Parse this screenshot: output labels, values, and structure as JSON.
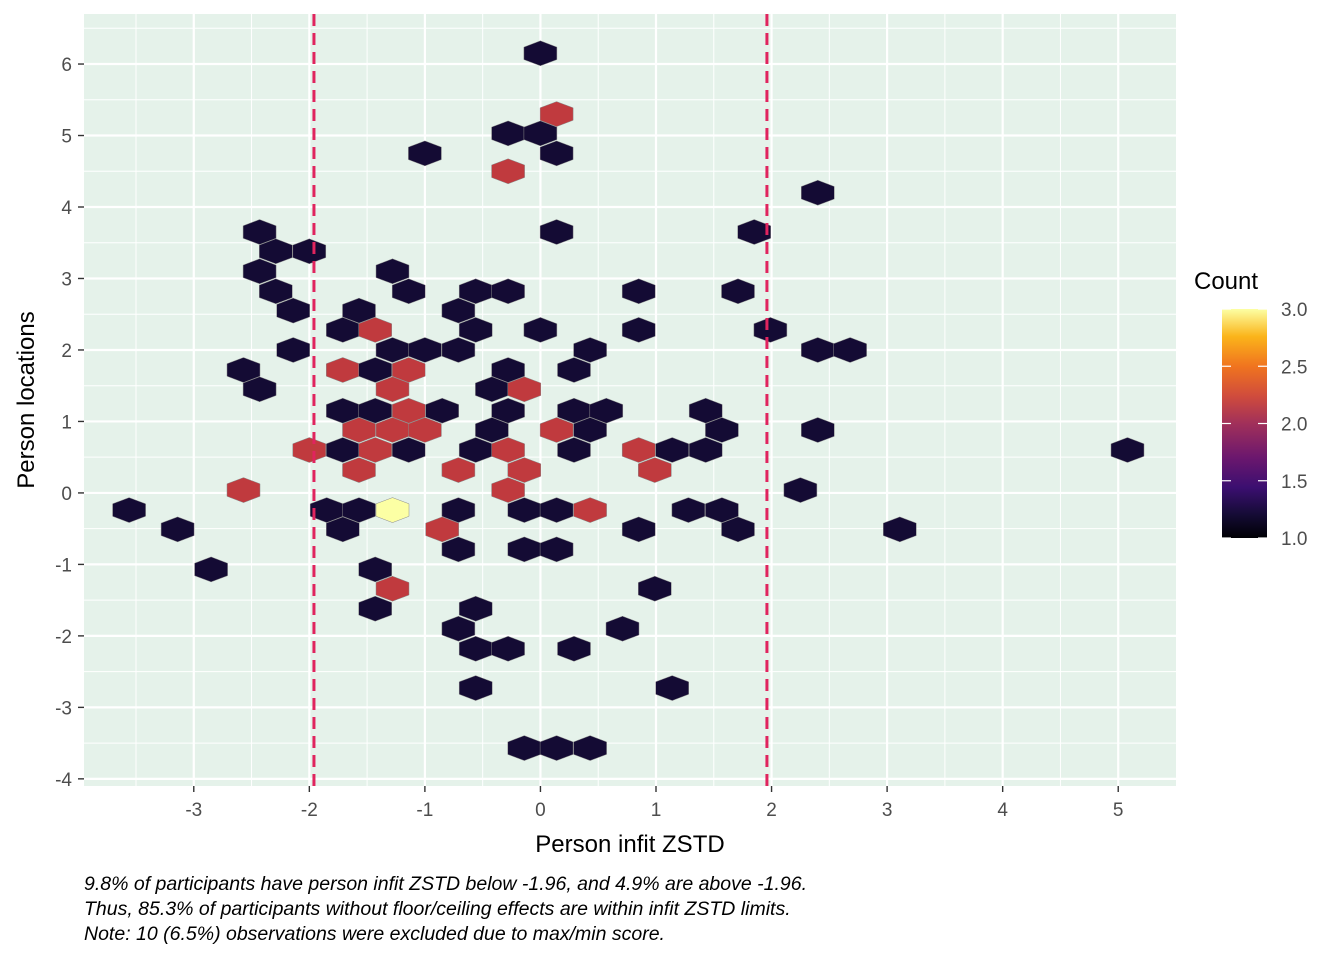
{
  "chart_data": {
    "type": "hexbin",
    "xlabel": "Person infit ZSTD",
    "ylabel": "Person locations",
    "xlim": [
      -3.95,
      5.5
    ],
    "ylim": [
      -4.1,
      6.7
    ],
    "x_ticks": [
      -3,
      -2,
      -1,
      0,
      1,
      2,
      3,
      4,
      5
    ],
    "x_tick_labels": [
      "-3",
      "-2",
      "-1",
      "0",
      "1",
      "2",
      "3",
      "4",
      "5"
    ],
    "y_ticks": [
      -4,
      -3,
      -2,
      -1,
      0,
      1,
      2,
      3,
      4,
      5,
      6
    ],
    "y_tick_labels": [
      "-4",
      "-3",
      "-2",
      "-1",
      "0",
      "1",
      "2",
      "3",
      "4",
      "5",
      "6"
    ],
    "reference_lines_x": [
      -1.96,
      1.96
    ],
    "reference_line_color": "#e0245e",
    "panel_background": "#e5f2ea",
    "grid": true,
    "legend": {
      "title": "Count",
      "position": "right",
      "min": 1.0,
      "max": 3.0,
      "ticks": [
        3.0,
        2.5,
        2.0,
        1.5,
        1.0
      ],
      "tick_labels": [
        "3.0",
        "2.5",
        "2.0",
        "1.5",
        "1.0"
      ],
      "colormap": "inferno"
    },
    "hex_color_low": "#140b34",
    "hex_color_mid": "#c03a3e",
    "hex_color_high": "#fcffa4",
    "hexagons": [
      {
        "x": 0.0,
        "y": 6.15,
        "count": 1
      },
      {
        "x": 0.14,
        "y": 5.3,
        "count": 2
      },
      {
        "x": -0.28,
        "y": 5.03,
        "count": 1
      },
      {
        "x": 0.0,
        "y": 5.03,
        "count": 1
      },
      {
        "x": -1.0,
        "y": 4.75,
        "count": 1
      },
      {
        "x": 0.14,
        "y": 4.75,
        "count": 1
      },
      {
        "x": -0.28,
        "y": 4.5,
        "count": 2
      },
      {
        "x": 2.4,
        "y": 4.2,
        "count": 1
      },
      {
        "x": -2.43,
        "y": 3.65,
        "count": 1
      },
      {
        "x": 0.14,
        "y": 3.65,
        "count": 1
      },
      {
        "x": 1.85,
        "y": 3.65,
        "count": 1
      },
      {
        "x": -2.29,
        "y": 3.38,
        "count": 1
      },
      {
        "x": -2.0,
        "y": 3.38,
        "count": 1
      },
      {
        "x": -2.43,
        "y": 3.1,
        "count": 1
      },
      {
        "x": -1.28,
        "y": 3.1,
        "count": 1
      },
      {
        "x": -2.29,
        "y": 2.82,
        "count": 1
      },
      {
        "x": -1.14,
        "y": 2.82,
        "count": 1
      },
      {
        "x": -0.56,
        "y": 2.82,
        "count": 1
      },
      {
        "x": -0.28,
        "y": 2.82,
        "count": 1
      },
      {
        "x": 0.85,
        "y": 2.82,
        "count": 1
      },
      {
        "x": 1.71,
        "y": 2.82,
        "count": 1
      },
      {
        "x": -2.14,
        "y": 2.55,
        "count": 1
      },
      {
        "x": -1.57,
        "y": 2.55,
        "count": 1
      },
      {
        "x": -0.71,
        "y": 2.55,
        "count": 1
      },
      {
        "x": -1.71,
        "y": 2.28,
        "count": 1
      },
      {
        "x": -1.43,
        "y": 2.28,
        "count": 2
      },
      {
        "x": -0.56,
        "y": 2.28,
        "count": 1
      },
      {
        "x": 0.0,
        "y": 2.28,
        "count": 1
      },
      {
        "x": 0.85,
        "y": 2.28,
        "count": 1
      },
      {
        "x": 1.99,
        "y": 2.28,
        "count": 1
      },
      {
        "x": -2.14,
        "y": 2.0,
        "count": 1
      },
      {
        "x": -1.28,
        "y": 2.0,
        "count": 1
      },
      {
        "x": -1.0,
        "y": 2.0,
        "count": 1
      },
      {
        "x": -0.71,
        "y": 2.0,
        "count": 1
      },
      {
        "x": 0.43,
        "y": 2.0,
        "count": 1
      },
      {
        "x": 2.4,
        "y": 2.0,
        "count": 1
      },
      {
        "x": 2.68,
        "y": 2.0,
        "count": 1
      },
      {
        "x": -2.57,
        "y": 1.72,
        "count": 1
      },
      {
        "x": -1.71,
        "y": 1.72,
        "count": 2
      },
      {
        "x": -1.43,
        "y": 1.72,
        "count": 1
      },
      {
        "x": -1.14,
        "y": 1.72,
        "count": 2
      },
      {
        "x": -0.28,
        "y": 1.72,
        "count": 1
      },
      {
        "x": 0.29,
        "y": 1.72,
        "count": 1
      },
      {
        "x": -2.43,
        "y": 1.45,
        "count": 1
      },
      {
        "x": -1.28,
        "y": 1.45,
        "count": 2
      },
      {
        "x": -0.42,
        "y": 1.45,
        "count": 1
      },
      {
        "x": -0.14,
        "y": 1.45,
        "count": 2
      },
      {
        "x": -1.71,
        "y": 1.15,
        "count": 1
      },
      {
        "x": -1.43,
        "y": 1.15,
        "count": 1
      },
      {
        "x": -1.14,
        "y": 1.15,
        "count": 2
      },
      {
        "x": -0.85,
        "y": 1.15,
        "count": 1
      },
      {
        "x": -0.28,
        "y": 1.15,
        "count": 1
      },
      {
        "x": 0.29,
        "y": 1.15,
        "count": 1
      },
      {
        "x": 0.57,
        "y": 1.15,
        "count": 1
      },
      {
        "x": 1.43,
        "y": 1.15,
        "count": 1
      },
      {
        "x": -1.57,
        "y": 0.88,
        "count": 2
      },
      {
        "x": -1.28,
        "y": 0.88,
        "count": 2
      },
      {
        "x": -1.0,
        "y": 0.88,
        "count": 2
      },
      {
        "x": -0.42,
        "y": 0.88,
        "count": 1
      },
      {
        "x": 0.14,
        "y": 0.88,
        "count": 2
      },
      {
        "x": 0.43,
        "y": 0.88,
        "count": 1
      },
      {
        "x": 1.57,
        "y": 0.88,
        "count": 1
      },
      {
        "x": 2.4,
        "y": 0.88,
        "count": 1
      },
      {
        "x": -2.0,
        "y": 0.6,
        "count": 2
      },
      {
        "x": -1.71,
        "y": 0.6,
        "count": 1
      },
      {
        "x": -1.43,
        "y": 0.6,
        "count": 2
      },
      {
        "x": -1.14,
        "y": 0.6,
        "count": 1
      },
      {
        "x": -0.56,
        "y": 0.6,
        "count": 1
      },
      {
        "x": -0.28,
        "y": 0.6,
        "count": 2
      },
      {
        "x": 0.29,
        "y": 0.6,
        "count": 1
      },
      {
        "x": 0.85,
        "y": 0.6,
        "count": 2
      },
      {
        "x": 1.14,
        "y": 0.6,
        "count": 1
      },
      {
        "x": 1.43,
        "y": 0.6,
        "count": 1
      },
      {
        "x": 5.08,
        "y": 0.6,
        "count": 1
      },
      {
        "x": -1.57,
        "y": 0.32,
        "count": 2
      },
      {
        "x": -0.71,
        "y": 0.32,
        "count": 2
      },
      {
        "x": -0.14,
        "y": 0.32,
        "count": 2
      },
      {
        "x": 0.99,
        "y": 0.32,
        "count": 2
      },
      {
        "x": -2.57,
        "y": 0.04,
        "count": 2
      },
      {
        "x": -0.28,
        "y": 0.04,
        "count": 2
      },
      {
        "x": 2.25,
        "y": 0.04,
        "count": 1
      },
      {
        "x": -3.56,
        "y": -0.24,
        "count": 1
      },
      {
        "x": -1.85,
        "y": -0.24,
        "count": 1
      },
      {
        "x": -1.57,
        "y": -0.24,
        "count": 1
      },
      {
        "x": -1.28,
        "y": -0.24,
        "count": 3
      },
      {
        "x": -0.71,
        "y": -0.24,
        "count": 1
      },
      {
        "x": -0.14,
        "y": -0.24,
        "count": 1
      },
      {
        "x": 0.14,
        "y": -0.24,
        "count": 1
      },
      {
        "x": 0.43,
        "y": -0.24,
        "count": 2
      },
      {
        "x": 1.28,
        "y": -0.24,
        "count": 1
      },
      {
        "x": 1.57,
        "y": -0.24,
        "count": 1
      },
      {
        "x": -3.14,
        "y": -0.51,
        "count": 1
      },
      {
        "x": -1.71,
        "y": -0.51,
        "count": 1
      },
      {
        "x": -0.85,
        "y": -0.51,
        "count": 2
      },
      {
        "x": 0.85,
        "y": -0.51,
        "count": 1
      },
      {
        "x": 1.71,
        "y": -0.51,
        "count": 1
      },
      {
        "x": 3.11,
        "y": -0.51,
        "count": 1
      },
      {
        "x": -0.71,
        "y": -0.79,
        "count": 1
      },
      {
        "x": -0.14,
        "y": -0.79,
        "count": 1
      },
      {
        "x": 0.14,
        "y": -0.79,
        "count": 1
      },
      {
        "x": -2.85,
        "y": -1.07,
        "count": 1
      },
      {
        "x": -1.43,
        "y": -1.07,
        "count": 1
      },
      {
        "x": -1.28,
        "y": -1.34,
        "count": 2
      },
      {
        "x": 0.99,
        "y": -1.34,
        "count": 1
      },
      {
        "x": -1.43,
        "y": -1.62,
        "count": 1
      },
      {
        "x": -0.56,
        "y": -1.62,
        "count": 1
      },
      {
        "x": -0.71,
        "y": -1.9,
        "count": 1
      },
      {
        "x": 0.71,
        "y": -1.9,
        "count": 1
      },
      {
        "x": -0.56,
        "y": -2.18,
        "count": 1
      },
      {
        "x": -0.28,
        "y": -2.18,
        "count": 1
      },
      {
        "x": 0.29,
        "y": -2.18,
        "count": 1
      },
      {
        "x": -0.56,
        "y": -2.73,
        "count": 1
      },
      {
        "x": 1.14,
        "y": -2.73,
        "count": 1
      },
      {
        "x": -0.14,
        "y": -3.57,
        "count": 1
      },
      {
        "x": 0.14,
        "y": -3.57,
        "count": 1
      },
      {
        "x": 0.43,
        "y": -3.57,
        "count": 1
      }
    ]
  },
  "caption": {
    "line1": "9.8% of participants have person infit ZSTD below -1.96, and 4.9% are above -1.96.",
    "line2": "Thus, 85.3% of participants without floor/ceiling effects are within infit ZSTD limits.",
    "line3": "Note: 10 (6.5%) observations were excluded due to max/min score."
  }
}
